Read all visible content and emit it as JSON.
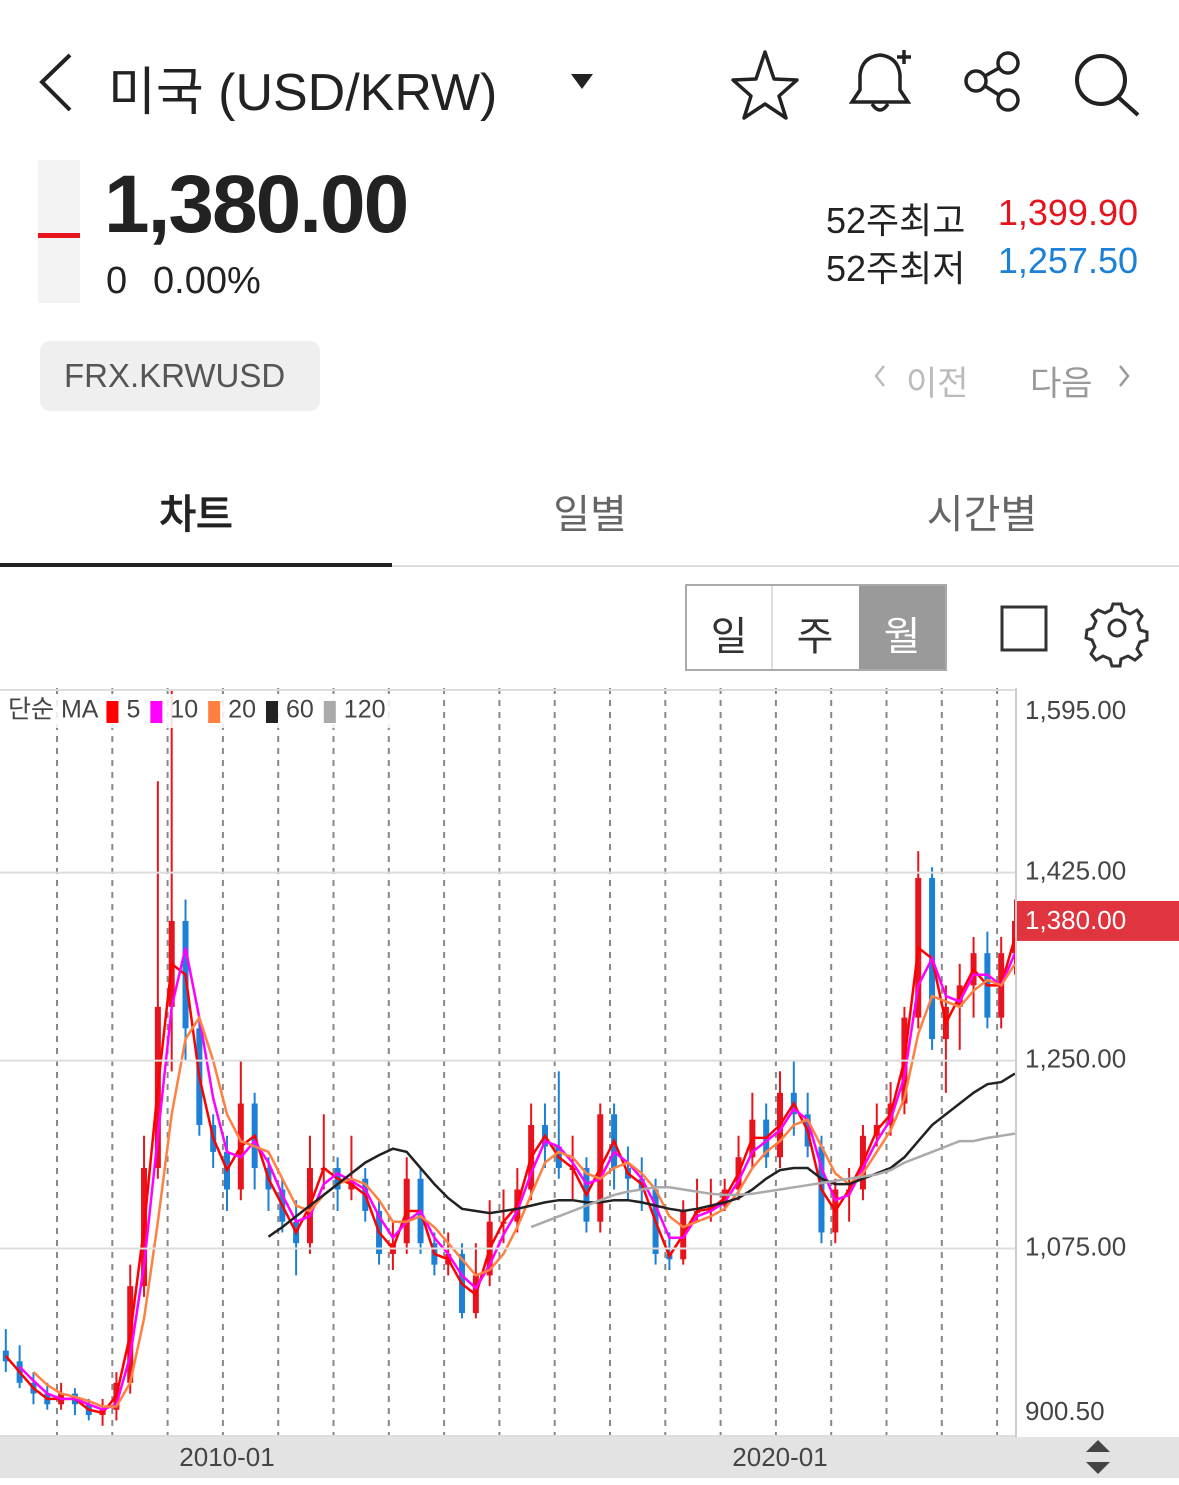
{
  "header": {
    "title": "미국 (USD/KRW)",
    "price": "1,380.00",
    "change": "0",
    "change_pct": "0.00%",
    "high_label": "52주최고",
    "high": "1,399.90",
    "low_label": "52주최저",
    "low": "1,257.50",
    "code": "FRX.KRWUSD",
    "prev": "이전",
    "next": "다음"
  },
  "tabs": [
    "차트",
    "일별",
    "시간별"
  ],
  "periods": [
    "일",
    "주",
    "월"
  ],
  "chart_data": {
    "type": "candlestick",
    "x": [
      "2006-01",
      "2006-04",
      "2006-07",
      "2006-10",
      "2007-01",
      "2007-04",
      "2007-07",
      "2007-10",
      "2008-01",
      "2008-04",
      "2008-07",
      "2008-10",
      "2009-01",
      "2009-04",
      "2009-07",
      "2009-10",
      "2010-01",
      "2010-04",
      "2010-07",
      "2010-10",
      "2011-01",
      "2011-04",
      "2011-07",
      "2011-10",
      "2012-01",
      "2012-04",
      "2012-07",
      "2012-10",
      "2013-01",
      "2013-04",
      "2013-07",
      "2013-10",
      "2014-01",
      "2014-04",
      "2014-07",
      "2014-10",
      "2015-01",
      "2015-04",
      "2015-07",
      "2015-10",
      "2016-01",
      "2016-04",
      "2016-07",
      "2016-10",
      "2017-01",
      "2017-04",
      "2017-07",
      "2017-10",
      "2018-01",
      "2018-04",
      "2018-07",
      "2018-10",
      "2019-01",
      "2019-04",
      "2019-07",
      "2019-10",
      "2020-01",
      "2020-04",
      "2020-07",
      "2020-10",
      "2021-01",
      "2021-04",
      "2021-07",
      "2021-10",
      "2022-01",
      "2022-04",
      "2022-07",
      "2022-10",
      "2023-01",
      "2023-04",
      "2023-07",
      "2023-10",
      "2024-01",
      "2024-04"
    ],
    "open": [
      980,
      970,
      950,
      940,
      930,
      940,
      930,
      920,
      925,
      950,
      1040,
      1150,
      1300,
      1380,
      1280,
      1190,
      1165,
      1130,
      1210,
      1150,
      1130,
      1100,
      1080,
      1150,
      1150,
      1130,
      1140,
      1110,
      1070,
      1080,
      1140,
      1080,
      1060,
      1070,
      1015,
      1050,
      1100,
      1100,
      1130,
      1190,
      1170,
      1150,
      1150,
      1100,
      1200,
      1150,
      1140,
      1130,
      1070,
      1065,
      1110,
      1110,
      1115,
      1130,
      1160,
      1195,
      1160,
      1220,
      1200,
      1170,
      1090,
      1130,
      1130,
      1180,
      1190,
      1210,
      1290,
      1420,
      1270,
      1300,
      1320,
      1350,
      1290,
      1350
    ],
    "high": [
      1000,
      985,
      960,
      950,
      950,
      945,
      935,
      935,
      960,
      1060,
      1180,
      1510,
      1595,
      1400,
      1290,
      1200,
      1180,
      1250,
      1220,
      1160,
      1140,
      1120,
      1180,
      1200,
      1160,
      1180,
      1150,
      1120,
      1100,
      1160,
      1150,
      1090,
      1090,
      1080,
      1080,
      1120,
      1130,
      1150,
      1210,
      1210,
      1240,
      1180,
      1160,
      1210,
      1210,
      1170,
      1160,
      1140,
      1090,
      1120,
      1140,
      1140,
      1140,
      1180,
      1220,
      1210,
      1240,
      1250,
      1220,
      1180,
      1140,
      1150,
      1190,
      1210,
      1230,
      1300,
      1445,
      1430,
      1320,
      1340,
      1365,
      1370,
      1365,
      1400
    ],
    "low": [
      960,
      945,
      930,
      925,
      925,
      920,
      915,
      910,
      915,
      940,
      1030,
      1140,
      1240,
      1250,
      1180,
      1150,
      1110,
      1120,
      1130,
      1110,
      1090,
      1050,
      1070,
      1130,
      1110,
      1120,
      1100,
      1060,
      1055,
      1070,
      1070,
      1050,
      1050,
      1010,
      1010,
      1040,
      1080,
      1090,
      1120,
      1150,
      1140,
      1120,
      1090,
      1090,
      1130,
      1120,
      1110,
      1060,
      1055,
      1060,
      1100,
      1100,
      1110,
      1120,
      1150,
      1150,
      1150,
      1180,
      1160,
      1080,
      1080,
      1100,
      1120,
      1170,
      1180,
      1200,
      1280,
      1260,
      1220,
      1260,
      1290,
      1280,
      1280,
      1330
    ],
    "close": [
      970,
      950,
      940,
      930,
      940,
      930,
      920,
      925,
      950,
      1040,
      1150,
      1300,
      1380,
      1280,
      1190,
      1165,
      1130,
      1210,
      1150,
      1130,
      1100,
      1080,
      1150,
      1150,
      1130,
      1140,
      1110,
      1070,
      1080,
      1140,
      1080,
      1060,
      1070,
      1015,
      1050,
      1100,
      1100,
      1130,
      1190,
      1170,
      1150,
      1150,
      1100,
      1200,
      1150,
      1140,
      1130,
      1070,
      1065,
      1110,
      1110,
      1115,
      1130,
      1160,
      1195,
      1160,
      1220,
      1200,
      1170,
      1090,
      1130,
      1130,
      1180,
      1190,
      1210,
      1290,
      1420,
      1270,
      1300,
      1320,
      1350,
      1290,
      1350,
      1380
    ],
    "up_color": "#e8141d",
    "down_color": "#1c80d6",
    "legend_title": "단순 MA",
    "series": [
      {
        "name": "5",
        "color": "#ff0000",
        "values": [
          975,
          960,
          945,
          935,
          935,
          935,
          925,
          922,
          938,
          995,
          1095,
          1225,
          1340,
          1330,
          1235,
          1178,
          1148,
          1170,
          1180,
          1140,
          1115,
          1090,
          1115,
          1150,
          1140,
          1135,
          1125,
          1090,
          1075,
          1110,
          1110,
          1070,
          1065,
          1042,
          1032,
          1075,
          1100,
          1115,
          1160,
          1180,
          1160,
          1150,
          1125,
          1150,
          1175,
          1145,
          1135,
          1100,
          1068,
          1088,
          1110,
          1112,
          1122,
          1145,
          1178,
          1178,
          1190,
          1210,
          1185,
          1130,
          1110,
          1130,
          1155,
          1185,
          1200,
          1250,
          1355,
          1345,
          1285,
          1310,
          1335,
          1320,
          1320,
          1365
        ]
      },
      {
        "name": "10",
        "color": "#ff00ff",
        "values": [
          null,
          965,
          952,
          940,
          935,
          935,
          930,
          925,
          930,
          975,
          1060,
          1180,
          1300,
          1355,
          1290,
          1215,
          1165,
          1160,
          1175,
          1155,
          1125,
          1100,
          1105,
          1135,
          1145,
          1138,
          1130,
          1105,
          1085,
          1100,
          1110,
          1085,
          1070,
          1050,
          1038,
          1060,
          1088,
          1110,
          1145,
          1175,
          1170,
          1155,
          1135,
          1140,
          1165,
          1155,
          1140,
          1115,
          1085,
          1085,
          1105,
          1110,
          1118,
          1138,
          1165,
          1175,
          1185,
          1205,
          1195,
          1150,
          1120,
          1125,
          1150,
          1175,
          1195,
          1235,
          1320,
          1345,
          1310,
          1305,
          1330,
          1330,
          1320,
          1350
        ]
      },
      {
        "name": "20",
        "color": "#ff8040",
        "values": [
          null,
          null,
          960,
          948,
          940,
          937,
          933,
          928,
          928,
          950,
          1010,
          1100,
          1200,
          1270,
          1290,
          1250,
          1200,
          1175,
          1170,
          1165,
          1140,
          1115,
          1110,
          1125,
          1135,
          1140,
          1135,
          1120,
          1100,
          1100,
          1105,
          1095,
          1080,
          1065,
          1050,
          1055,
          1070,
          1095,
          1125,
          1155,
          1165,
          1160,
          1145,
          1140,
          1150,
          1155,
          1145,
          1130,
          1105,
          1095,
          1100,
          1105,
          1112,
          1128,
          1150,
          1165,
          1175,
          1190,
          1195,
          1170,
          1145,
          1135,
          1145,
          1165,
          1185,
          1215,
          1275,
          1310,
          1305,
          1300,
          1315,
          1325,
          1320,
          1340
        ]
      },
      {
        "name": "60",
        "color": "#222222",
        "values": [
          null,
          null,
          null,
          null,
          null,
          null,
          null,
          null,
          null,
          null,
          null,
          null,
          null,
          null,
          null,
          null,
          null,
          null,
          null,
          1086,
          1095,
          1105,
          1115,
          1125,
          1135,
          1145,
          1155,
          1162,
          1168,
          1165,
          1150,
          1135,
          1122,
          1112,
          1110,
          1108,
          1110,
          1112,
          1115,
          1118,
          1120,
          1120,
          1118,
          1118,
          1120,
          1120,
          1118,
          1115,
          1112,
          1110,
          1112,
          1115,
          1118,
          1122,
          1130,
          1140,
          1148,
          1150,
          1150,
          1140,
          1135,
          1135,
          1140,
          1145,
          1150,
          1160,
          1175,
          1190,
          1200,
          1210,
          1220,
          1228,
          1230,
          1238
        ]
      },
      {
        "name": "120",
        "color": "#aaaaaa",
        "values": [
          null,
          null,
          null,
          null,
          null,
          null,
          null,
          null,
          null,
          null,
          null,
          null,
          null,
          null,
          null,
          null,
          null,
          null,
          null,
          null,
          null,
          null,
          null,
          null,
          null,
          null,
          null,
          null,
          null,
          null,
          null,
          null,
          null,
          null,
          null,
          null,
          null,
          null,
          1095,
          1100,
          1105,
          1110,
          1115,
          1120,
          1125,
          1128,
          1130,
          1132,
          1132,
          1130,
          1128,
          1126,
          1125,
          1125,
          1126,
          1128,
          1130,
          1132,
          1134,
          1136,
          1138,
          1140,
          1142,
          1144,
          1148,
          1155,
          1160,
          1165,
          1170,
          1175,
          1175,
          1178,
          1180,
          1182
        ]
      }
    ],
    "ylim": [
      900.5,
      1595
    ],
    "yticks": [
      {
        "value": 900.5,
        "label": "900.50"
      },
      {
        "value": 1075,
        "label": "1,075.00"
      },
      {
        "value": 1250,
        "label": "1,250.00"
      },
      {
        "value": 1425,
        "label": "1,425.00"
      },
      {
        "value": 1595,
        "label": "1,595.00"
      }
    ],
    "xticks": [
      "2010-01",
      "2020-01"
    ],
    "grid": true,
    "current_label": "1,380.00"
  }
}
